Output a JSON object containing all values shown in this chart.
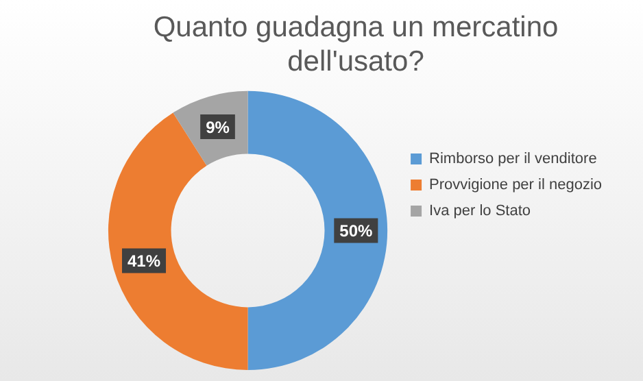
{
  "chart_data": {
    "type": "donut",
    "title": "Quanto guadagna un mercatino dell'usato?",
    "categories": [
      "Rimborso per il venditore",
      "Provvigione per il negozio",
      "Iva per lo Stato"
    ],
    "values": [
      50,
      41,
      9
    ],
    "colors": [
      "#5b9bd5",
      "#ed7d31",
      "#a5a5a5"
    ],
    "value_labels": [
      "50%",
      "41%",
      "9%"
    ],
    "legend": "right"
  }
}
